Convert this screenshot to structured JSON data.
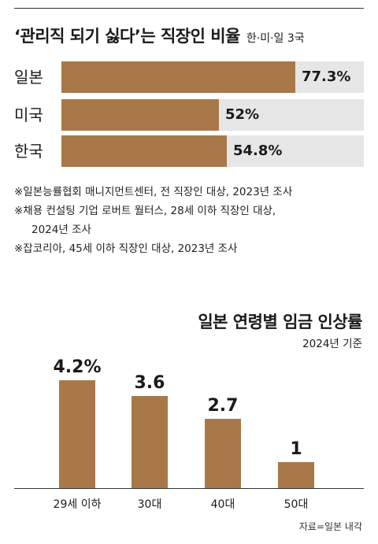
{
  "chart_data": [
    {
      "type": "bar",
      "orientation": "horizontal",
      "title": "‘관리직 되기 싫다’는 직장인 비율",
      "subtitle": "한·미·일 3국",
      "categories": [
        "일본",
        "미국",
        "한국"
      ],
      "values": [
        77.3,
        52,
        54.8
      ],
      "value_labels": [
        "77.3%",
        "52%",
        "54.8%"
      ],
      "xlim": [
        0,
        100
      ],
      "bar_color": "#a87848",
      "track_color": "#e6e6e6",
      "notes": [
        "※일본능률협회 매니지먼트센터, 전 직장인 대상, 2023년 조사",
        "※채용 컨설팅 기업 로버트 월터스, 28세 이하 직장인 대상,",
        "2024년 조사",
        "※잡코리아, 45세 이하 직장인 대상, 2023년 조사"
      ]
    },
    {
      "type": "bar",
      "title": "일본 연령별 임금 인상률",
      "subtitle": "2024년 기준",
      "categories": [
        "29세 이하",
        "30대",
        "40대",
        "50대"
      ],
      "values": [
        4.2,
        3.6,
        2.7,
        1
      ],
      "value_labels": [
        "4.2%",
        "3.6",
        "2.7",
        "1"
      ],
      "ylim": [
        0,
        4.2
      ],
      "bar_color": "#a87848",
      "source": "자료=일본 내각"
    }
  ]
}
